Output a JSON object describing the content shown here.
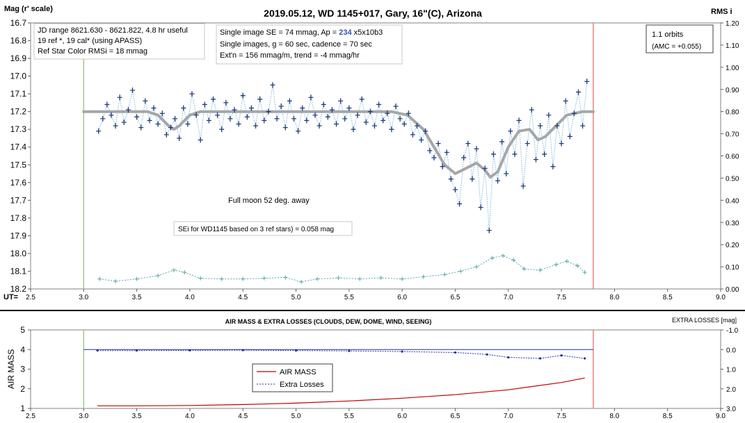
{
  "chart_data": [
    {
      "type": "scatter",
      "title": "2019.05.12, WD 1145+017, Gary, 16\"(C), Arizona",
      "ylabel": "Mag (r' scale)",
      "y2label": "RMS i",
      "xlabel": "UT=",
      "xlim": [
        2.5,
        9.0
      ],
      "ylim": [
        16.7,
        18.2
      ],
      "y2lim": [
        0.0,
        1.2
      ],
      "x_ticks": [
        "2.5",
        "3.0",
        "3.5",
        "4.0",
        "4.5",
        "5.0",
        "5.5",
        "6.0",
        "6.5",
        "7.0",
        "7.5",
        "8.0",
        "8.5",
        "9.0"
      ],
      "y_ticks": [
        "16.7",
        "16.8",
        "16.9",
        "17.0",
        "17.1",
        "17.2",
        "17.3",
        "17.4",
        "17.5",
        "17.6",
        "17.7",
        "17.8",
        "17.9",
        "18.0",
        "18.1",
        "18.2"
      ],
      "y2_ticks": [
        "1.20",
        "1.10",
        "1.00",
        "0.90",
        "0.80",
        "0.70",
        "0.60",
        "0.50",
        "0.40",
        "0.30",
        "0.20",
        "0.10",
        "0.00"
      ],
      "start_line_x": 3.0,
      "end_line_x": 7.8,
      "annotations": {
        "box1": [
          "JD range 8621.630 - 8621.822, 4.8 hr useful",
          "19 ref *, 19 cal* (using APASS)",
          "Ref Star Color RMSi = 18 mmag"
        ],
        "box2_line1_pre": "Single image SE = 74 mmag, Ap = ",
        "box2_line1_ap": "234",
        "box2_line1_post": " x5x10b3",
        "box2_line2": "Single images, g = 60 sec, cadence = 70 sec",
        "box2_line3": "Ext'n = 156 mmag/m, trend = -4 mmag/hr",
        "orbits": "1.1 orbits",
        "amc": "(AMC = +0.055)",
        "moon": "Full moon 52 deg. away",
        "sei": "SEi for WD1145 based on 3 ref stars) = 0.058 mag"
      },
      "series": [
        {
          "name": "",
          "color": "#1f3d7a",
          "marker": "plus",
          "points": [
            [
              3.14,
              17.31
            ],
            [
              3.18,
              17.24
            ],
            [
              3.22,
              17.16
            ],
            [
              3.26,
              17.22
            ],
            [
              3.3,
              17.28
            ],
            [
              3.34,
              17.12
            ],
            [
              3.38,
              17.26
            ],
            [
              3.42,
              17.19
            ],
            [
              3.46,
              17.08
            ],
            [
              3.5,
              17.23
            ],
            [
              3.54,
              17.29
            ],
            [
              3.58,
              17.14
            ],
            [
              3.62,
              17.25
            ],
            [
              3.66,
              17.18
            ],
            [
              3.7,
              17.27
            ],
            [
              3.74,
              17.21
            ],
            [
              3.78,
              17.33
            ],
            [
              3.82,
              17.29
            ],
            [
              3.86,
              17.24
            ],
            [
              3.9,
              17.35
            ],
            [
              3.94,
              17.18
            ],
            [
              3.98,
              17.27
            ],
            [
              4.02,
              17.1
            ],
            [
              4.06,
              17.22
            ],
            [
              4.1,
              17.36
            ],
            [
              4.14,
              17.16
            ],
            [
              4.18,
              17.25
            ],
            [
              4.22,
              17.13
            ],
            [
              4.26,
              17.22
            ],
            [
              4.3,
              17.3
            ],
            [
              4.34,
              17.15
            ],
            [
              4.38,
              17.24
            ],
            [
              4.42,
              17.19
            ],
            [
              4.46,
              17.27
            ],
            [
              4.5,
              17.11
            ],
            [
              4.54,
              17.23
            ],
            [
              4.58,
              17.18
            ],
            [
              4.62,
              17.28
            ],
            [
              4.66,
              17.13
            ],
            [
              4.7,
              17.25
            ],
            [
              4.74,
              17.2
            ],
            [
              4.78,
              17.05
            ],
            [
              4.82,
              17.24
            ],
            [
              4.86,
              17.17
            ],
            [
              4.9,
              17.29
            ],
            [
              4.94,
              17.14
            ],
            [
              4.98,
              17.24
            ],
            [
              5.02,
              17.31
            ],
            [
              5.06,
              17.18
            ],
            [
              5.1,
              17.25
            ],
            [
              5.14,
              17.12
            ],
            [
              5.18,
              17.22
            ],
            [
              5.22,
              17.28
            ],
            [
              5.26,
              17.16
            ],
            [
              5.3,
              17.23
            ],
            [
              5.34,
              17.19
            ],
            [
              5.38,
              17.27
            ],
            [
              5.42,
              17.14
            ],
            [
              5.46,
              17.24
            ],
            [
              5.5,
              17.18
            ],
            [
              5.54,
              17.3
            ],
            [
              5.58,
              17.22
            ],
            [
              5.62,
              17.13
            ],
            [
              5.66,
              17.26
            ],
            [
              5.7,
              17.2
            ],
            [
              5.74,
              17.28
            ],
            [
              5.78,
              17.16
            ],
            [
              5.82,
              17.25
            ],
            [
              5.86,
              17.21
            ],
            [
              5.9,
              17.3
            ],
            [
              5.94,
              17.17
            ],
            [
              5.98,
              17.24
            ],
            [
              6.02,
              17.27
            ],
            [
              6.06,
              17.21
            ],
            [
              6.1,
              17.33
            ],
            [
              6.14,
              17.28
            ],
            [
              6.18,
              17.36
            ],
            [
              6.22,
              17.31
            ],
            [
              6.26,
              17.42
            ],
            [
              6.3,
              17.46
            ],
            [
              6.34,
              17.38
            ],
            [
              6.38,
              17.51
            ],
            [
              6.42,
              17.43
            ],
            [
              6.46,
              17.58
            ],
            [
              6.5,
              17.64
            ],
            [
              6.54,
              17.72
            ],
            [
              6.58,
              17.46
            ],
            [
              6.62,
              17.38
            ],
            [
              6.66,
              17.58
            ],
            [
              6.7,
              17.41
            ],
            [
              6.74,
              17.74
            ],
            [
              6.78,
              17.52
            ],
            [
              6.82,
              17.87
            ],
            [
              6.86,
              17.44
            ],
            [
              6.9,
              17.59
            ],
            [
              6.94,
              17.37
            ],
            [
              6.98,
              17.55
            ],
            [
              7.02,
              17.31
            ],
            [
              7.06,
              17.44
            ],
            [
              7.1,
              17.25
            ],
            [
              7.14,
              17.62
            ],
            [
              7.18,
              17.38
            ],
            [
              7.22,
              17.19
            ],
            [
              7.26,
              17.47
            ],
            [
              7.3,
              17.28
            ],
            [
              7.34,
              17.44
            ],
            [
              7.38,
              17.22
            ],
            [
              7.42,
              17.51
            ],
            [
              7.46,
              17.28
            ],
            [
              7.5,
              17.38
            ],
            [
              7.54,
              17.14
            ],
            [
              7.58,
              17.34
            ],
            [
              7.62,
              17.21
            ],
            [
              7.66,
              17.09
            ],
            [
              7.7,
              17.28
            ],
            [
              7.74,
              17.03
            ]
          ]
        },
        {
          "name": "",
          "color": "#a6a6a6",
          "style": "model",
          "points": [
            [
              3.0,
              17.2
            ],
            [
              3.6,
              17.2
            ],
            [
              3.7,
              17.22
            ],
            [
              3.8,
              17.28
            ],
            [
              3.85,
              17.3
            ],
            [
              3.9,
              17.28
            ],
            [
              4.0,
              17.22
            ],
            [
              4.1,
              17.2
            ],
            [
              5.9,
              17.2
            ],
            [
              6.05,
              17.22
            ],
            [
              6.2,
              17.3
            ],
            [
              6.3,
              17.4
            ],
            [
              6.4,
              17.5
            ],
            [
              6.5,
              17.55
            ],
            [
              6.6,
              17.52
            ],
            [
              6.7,
              17.49
            ],
            [
              6.78,
              17.53
            ],
            [
              6.83,
              17.57
            ],
            [
              6.9,
              17.54
            ],
            [
              7.0,
              17.4
            ],
            [
              7.1,
              17.31
            ],
            [
              7.2,
              17.3
            ],
            [
              7.28,
              17.36
            ],
            [
              7.35,
              17.34
            ],
            [
              7.45,
              17.28
            ],
            [
              7.55,
              17.22
            ],
            [
              7.7,
              17.2
            ],
            [
              7.8,
              17.2
            ]
          ]
        },
        {
          "name": "",
          "color": "#56a5a8",
          "axis": "RMS i",
          "marker": "plus",
          "points": [
            [
              3.15,
              0.045
            ],
            [
              3.3,
              0.035
            ],
            [
              3.5,
              0.045
            ],
            [
              3.7,
              0.06
            ],
            [
              3.85,
              0.085
            ],
            [
              3.95,
              0.075
            ],
            [
              4.1,
              0.048
            ],
            [
              4.3,
              0.045
            ],
            [
              4.5,
              0.045
            ],
            [
              4.7,
              0.048
            ],
            [
              4.9,
              0.052
            ],
            [
              5.05,
              0.032
            ],
            [
              5.2,
              0.045
            ],
            [
              5.4,
              0.05
            ],
            [
              5.6,
              0.045
            ],
            [
              5.8,
              0.05
            ],
            [
              6.0,
              0.045
            ],
            [
              6.2,
              0.055
            ],
            [
              6.4,
              0.065
            ],
            [
              6.55,
              0.08
            ],
            [
              6.7,
              0.1
            ],
            [
              6.85,
              0.14
            ],
            [
              6.95,
              0.15
            ],
            [
              7.05,
              0.13
            ],
            [
              7.15,
              0.09
            ],
            [
              7.3,
              0.085
            ],
            [
              7.45,
              0.11
            ],
            [
              7.55,
              0.125
            ],
            [
              7.65,
              0.105
            ],
            [
              7.72,
              0.075
            ]
          ]
        }
      ]
    },
    {
      "type": "line",
      "title": "AIR MASS & EXTRA LOSSES (CLOUDS, DEW, DOME, WIND, SEEING)",
      "ylabel": "AIR MASS",
      "y2label": "EXTRA LOSSES [mag]",
      "xlim": [
        2.5,
        9.0
      ],
      "ylim": [
        1,
        5
      ],
      "y2lim": [
        -1.0,
        3.0
      ],
      "x_ticks": [
        "2.5",
        "3.0",
        "3.5",
        "4.0",
        "4.5",
        "5.0",
        "5.5",
        "6.0",
        "6.5",
        "7.0",
        "7.5",
        "8.0",
        "8.5",
        "9.0"
      ],
      "y_ticks": [
        "5",
        "4",
        "3",
        "2",
        "1"
      ],
      "y2_ticks": [
        "-1.0",
        "0.0",
        "1.0",
        "2.0",
        "3.0"
      ],
      "series": [
        {
          "name": "AIR MASS",
          "color": "#c00000",
          "points": [
            [
              3.13,
              1.13
            ],
            [
              3.5,
              1.13
            ],
            [
              4.0,
              1.15
            ],
            [
              4.5,
              1.2
            ],
            [
              5.0,
              1.27
            ],
            [
              5.5,
              1.38
            ],
            [
              6.0,
              1.52
            ],
            [
              6.5,
              1.7
            ],
            [
              7.0,
              1.95
            ],
            [
              7.5,
              2.32
            ],
            [
              7.72,
              2.55
            ]
          ]
        },
        {
          "name": "Extra Losses",
          "color": "#1f2fa0",
          "points": [
            [
              3.13,
              0.05
            ],
            [
              3.5,
              0.05
            ],
            [
              4.0,
              0.04
            ],
            [
              4.5,
              0.03
            ],
            [
              5.0,
              0.05
            ],
            [
              5.5,
              0.07
            ],
            [
              6.0,
              0.1
            ],
            [
              6.5,
              0.15
            ],
            [
              6.8,
              0.25
            ],
            [
              7.0,
              0.4
            ],
            [
              7.3,
              0.45
            ],
            [
              7.5,
              0.3
            ],
            [
              7.72,
              0.45
            ]
          ]
        }
      ],
      "reference_line": 0.0,
      "start_line_x": 3.0,
      "end_line_x": 7.8
    }
  ]
}
